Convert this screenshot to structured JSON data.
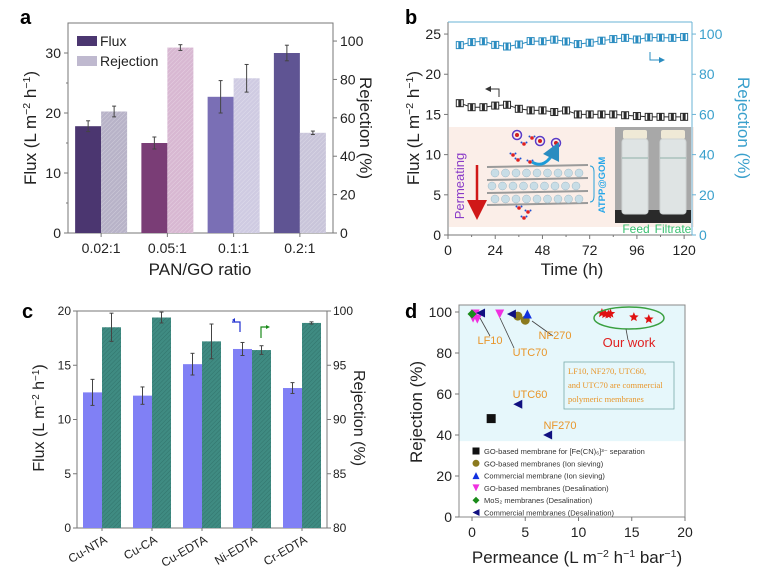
{
  "chart_data": [
    {
      "panel": "a",
      "type": "bar",
      "title": "",
      "xlabel": "PAN/GO ratio",
      "ylabel": "Flux (L m⁻² h⁻¹)",
      "ylabel_right": "Rejection (%)",
      "categories": [
        "0.02:1",
        "0.05:1",
        "0.1:1",
        "0.2:1"
      ],
      "ylim": [
        0,
        35
      ],
      "ylim_right": [
        0,
        109.4
      ],
      "yticks": [
        0,
        10,
        20,
        30
      ],
      "yticks_right": [
        0,
        20,
        40,
        60,
        80,
        100
      ],
      "legend_position": "top-left",
      "series": [
        {
          "name": "Flux",
          "axis": "left",
          "values": [
            17.8,
            15.0,
            22.7,
            30.0
          ],
          "errors": [
            0.9,
            1.0,
            2.7,
            1.3
          ],
          "colors": [
            "#4b3670",
            "#7a3d76",
            "#7a6fb5",
            "#5f5493"
          ],
          "legend_color": "#4b3670"
        },
        {
          "name": "Rejection",
          "axis": "right",
          "values": [
            63.3,
            96.6,
            80.6,
            52.2
          ],
          "errors": [
            2.8,
            1.5,
            7.2,
            0.9
          ],
          "colors": [
            "#b8b3c8",
            "#d8b8d2",
            "#cfcbe2",
            "#c9c5da"
          ],
          "legend_color": "#bfb9cf",
          "hatched": true
        }
      ]
    },
    {
      "panel": "b",
      "type": "line",
      "xlabel": "Time (h)",
      "ylabel": "Flux (L m⁻² h⁻¹)",
      "ylabel_right": "Rejection (%)",
      "xlim": [
        0,
        124
      ],
      "ylim": [
        0,
        26.5
      ],
      "ylim_right": [
        0,
        106
      ],
      "xticks": [
        0,
        24,
        48,
        72,
        96,
        120
      ],
      "yticks": [
        0,
        5,
        10,
        15,
        20,
        25
      ],
      "yticks_right": [
        0,
        20,
        40,
        60,
        80,
        100
      ],
      "x": [
        6,
        12,
        18,
        24,
        30,
        36,
        42,
        48,
        54,
        60,
        66,
        72,
        78,
        84,
        90,
        96,
        102,
        108,
        114,
        120
      ],
      "series": [
        {
          "name": "Rejection",
          "axis": "right",
          "color": "#2a8cc0",
          "values": [
            94.5,
            96.0,
            96.4,
            94.6,
            93.8,
            94.8,
            96.5,
            96.4,
            97.2,
            96.3,
            95.0,
            95.7,
            96.7,
            97.5,
            98.1,
            97.3,
            98.3,
            98.2,
            98.1,
            98.5
          ]
        },
        {
          "name": "Flux",
          "axis": "left",
          "color": "#2b2b2b",
          "values": [
            16.4,
            15.9,
            15.9,
            16.1,
            16.2,
            15.7,
            15.5,
            15.5,
            15.3,
            15.5,
            15.0,
            15.0,
            15.0,
            15.0,
            14.9,
            14.8,
            14.7,
            14.7,
            14.7,
            14.7
          ]
        }
      ],
      "inset": {
        "permeating_label": "Permeating",
        "membrane_label": "ATPP@GOM",
        "photo_labels": [
          "Feed",
          "Filtrate"
        ]
      }
    },
    {
      "panel": "c",
      "type": "bar",
      "xlabel": "",
      "ylabel": "Flux (L m⁻² h⁻¹)",
      "ylabel_right": "Rejection (%)",
      "categories": [
        "Cu-NTA",
        "Cu-CA",
        "Cu-EDTA",
        "Ni-EDTA",
        "Cr-EDTA"
      ],
      "ylim": [
        0,
        20
      ],
      "ylim_right": [
        80,
        100
      ],
      "yticks": [
        0,
        5,
        10,
        15,
        20
      ],
      "yticks_right": [
        80,
        85,
        90,
        95,
        100
      ],
      "series": [
        {
          "name": "Flux",
          "axis": "left",
          "color": "#8080f5",
          "values": [
            12.5,
            12.2,
            15.1,
            16.5,
            12.9
          ],
          "errors": [
            1.2,
            0.8,
            1.0,
            0.6,
            0.5
          ]
        },
        {
          "name": "Rejection",
          "axis": "right",
          "color": "#3f8b82",
          "values": [
            98.5,
            99.4,
            97.2,
            96.4,
            98.9
          ],
          "errors": [
            1.3,
            0.5,
            1.6,
            0.4,
            0.1
          ],
          "hatched": true
        }
      ]
    },
    {
      "panel": "d",
      "type": "scatter",
      "xlabel": "Permeance (L m⁻² h⁻¹ bar⁻¹)",
      "ylabel": "Rejection (%)",
      "xlim": [
        -1,
        20
      ],
      "ylim": [
        0,
        103
      ],
      "xticks": [
        0,
        5,
        10,
        15,
        20
      ],
      "yticks": [
        0,
        20,
        40,
        60,
        80,
        100
      ],
      "legend_position": "bottom-left",
      "series": [
        {
          "name": "GO-based membrane for [Fe(CN)₆]³⁻ separation",
          "marker": "square",
          "color": "#111111",
          "points": [
            [
              1.8,
              48
            ]
          ]
        },
        {
          "name": "GO-based membranes (Ion sieving)",
          "marker": "circle",
          "color": "#8b7a1e",
          "points": [
            [
              4.3,
              98
            ],
            [
              5.0,
              96
            ]
          ]
        },
        {
          "name": "Commercial membrane (Ion sieving)",
          "marker": "triangle-up",
          "color": "#1030e0",
          "points": [
            [
              5.2,
              99
            ]
          ]
        },
        {
          "name": "GO-based membranes (Desalination)",
          "marker": "triangle-down",
          "color": "#f030e0",
          "points": [
            [
              0.1,
              97
            ],
            [
              0.5,
              96.5
            ],
            [
              2.6,
              99
            ],
            [
              0.3,
              99
            ]
          ]
        },
        {
          "name": "MoS₂ membranes (Desalination)",
          "marker": "diamond",
          "color": "#1a8a1a",
          "points": [
            [
              0.0,
              99
            ]
          ]
        },
        {
          "name": "Commercial membranes (Desalination)",
          "marker": "triangle-left",
          "color": "#101080",
          "points": [
            [
              0.8,
              99.5
            ],
            [
              3.7,
              99
            ],
            [
              4.3,
              55
            ],
            [
              7.1,
              40
            ]
          ]
        },
        {
          "name": "Our work",
          "marker": "star",
          "color": "#e01010",
          "points": [
            [
              12.2,
              99.5
            ],
            [
              12.5,
              99
            ],
            [
              12.8,
              98.8
            ],
            [
              13.0,
              99.2
            ],
            [
              15.2,
              97.5
            ],
            [
              16.6,
              96.5
            ]
          ],
          "show_in_legend": false
        }
      ],
      "annotations": [
        {
          "text": "LF10",
          "color": "#e8962a"
        },
        {
          "text": "UTC70",
          "color": "#e8962a"
        },
        {
          "text": "NF270",
          "color": "#e8962a"
        },
        {
          "text": "UTC60",
          "color": "#e8962a"
        },
        {
          "text": "NF270",
          "color": "#e8962a"
        },
        {
          "text": "Our work",
          "color": "#e02020"
        }
      ],
      "note_box": [
        "LF10, NF270, UTC60,",
        "and UTC70 are commercial",
        "polymeric membranes"
      ]
    }
  ],
  "panel_labels": [
    "a",
    "b",
    "c",
    "d"
  ]
}
